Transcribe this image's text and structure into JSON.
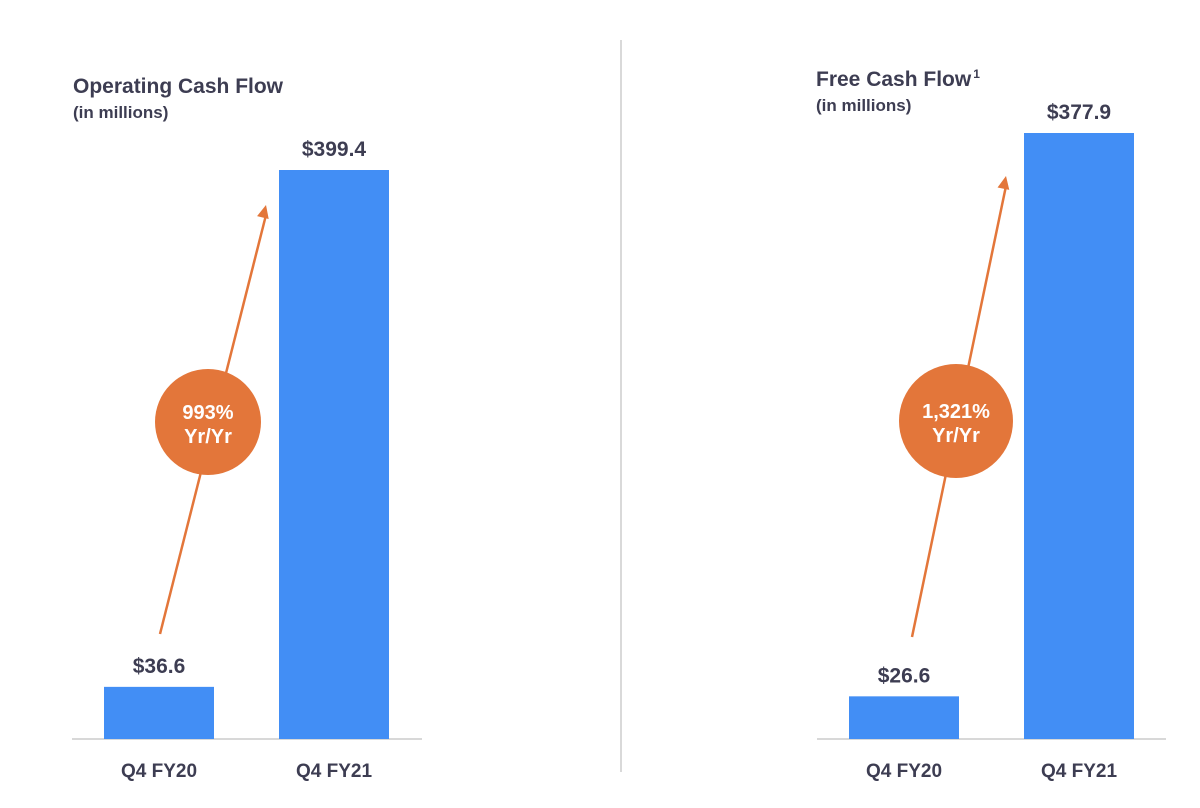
{
  "colors": {
    "bar": "#428ef5",
    "accent": "#e3763a",
    "text": "#3d3d52",
    "axis": "#cccccc",
    "badge_text": "#ffffff"
  },
  "chart_data": [
    {
      "type": "bar",
      "title": "Operating Cash Flow",
      "subtitle": "(in millions)",
      "categories": [
        "Q4 FY20",
        "Q4 FY21"
      ],
      "values": [
        36.6,
        399.4
      ],
      "value_labels": [
        "$36.6",
        "$399.4"
      ],
      "growth_badge": [
        "993%",
        "Yr/Yr"
      ],
      "unit": "$ millions"
    },
    {
      "type": "bar",
      "title": "Free Cash Flow",
      "title_superscript": "1",
      "subtitle": "(in millions)",
      "categories": [
        "Q4 FY20",
        "Q4 FY21"
      ],
      "values": [
        26.6,
        377.9
      ],
      "value_labels": [
        "$26.6",
        "$377.9"
      ],
      "growth_badge": [
        "1,321%",
        "Yr/Yr"
      ],
      "unit": "$ millions"
    }
  ]
}
